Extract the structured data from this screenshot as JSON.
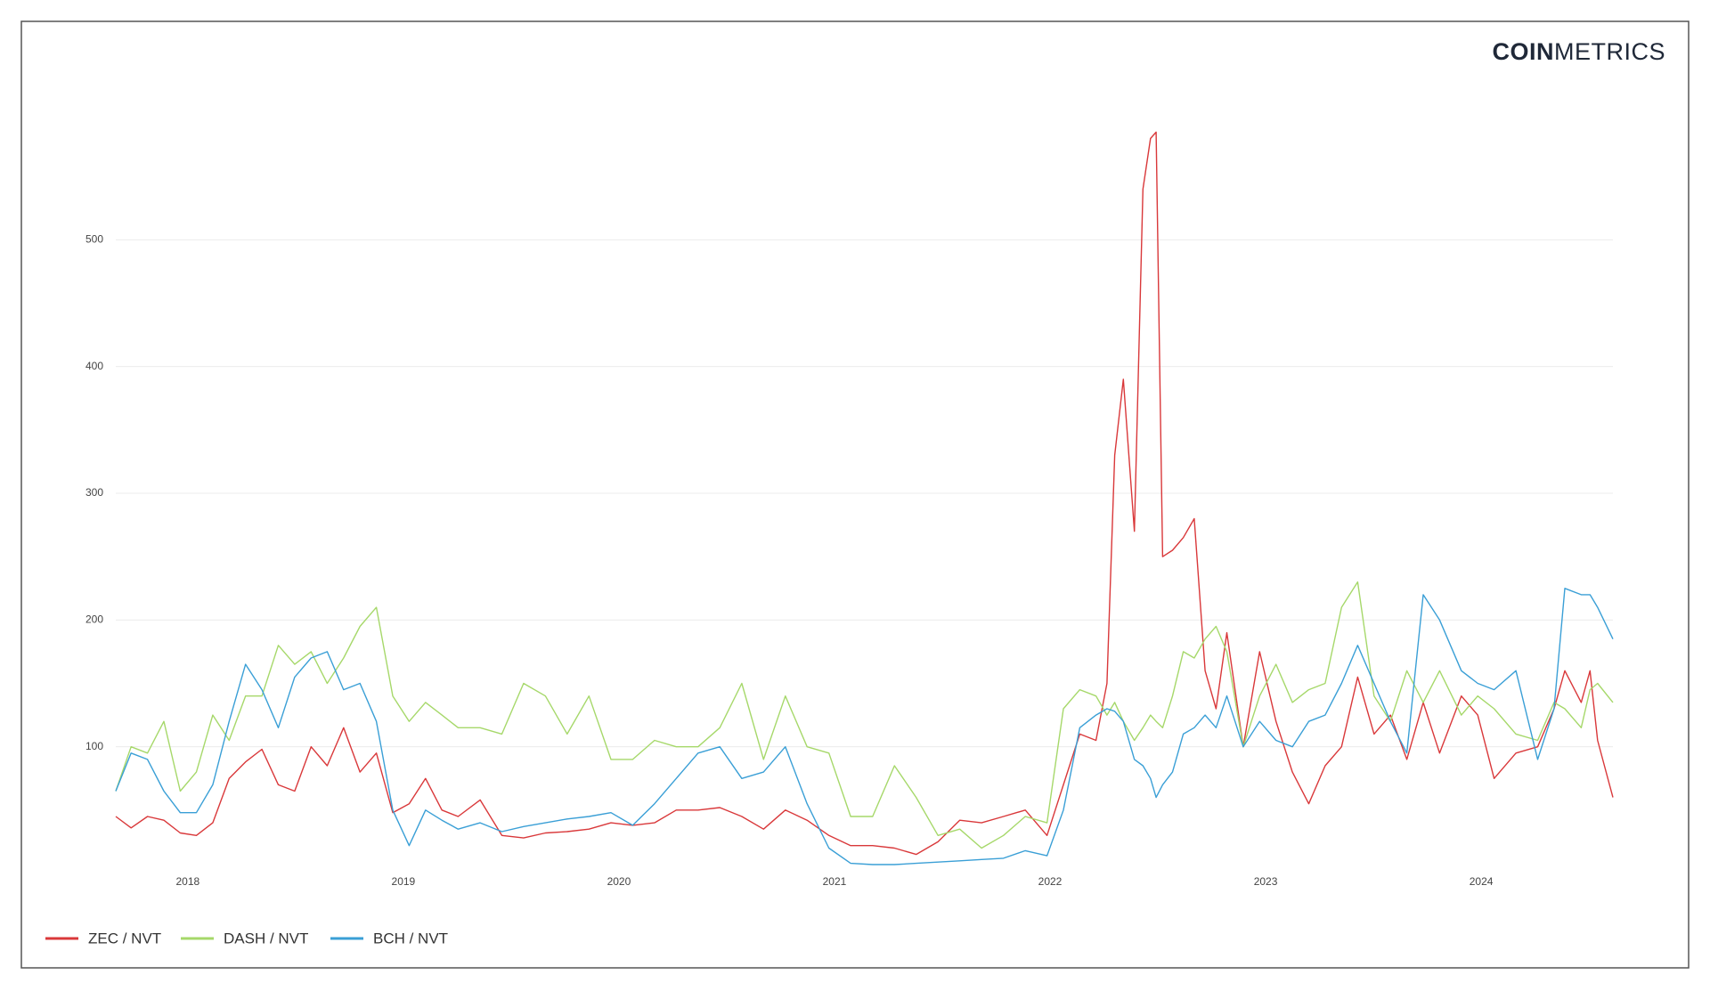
{
  "chart_data": {
    "type": "line",
    "brand": {
      "bold": "COIN",
      "light": "METRICS"
    },
    "x": [
      2017.666,
      2017.737,
      2017.813,
      2017.889,
      2017.965,
      2018.04,
      2018.116,
      2018.192,
      2018.268,
      2018.344,
      2018.42,
      2018.496,
      2018.572,
      2018.647,
      2018.723,
      2018.799,
      2018.875,
      2018.951,
      2019.027,
      2019.103,
      2019.179,
      2019.254,
      2019.356,
      2019.457,
      2019.558,
      2019.659,
      2019.76,
      2019.861,
      2019.963,
      2020.064,
      2020.165,
      2020.266,
      2020.367,
      2020.468,
      2020.57,
      2020.671,
      2020.772,
      2020.873,
      2020.974,
      2021.075,
      2021.177,
      2021.278,
      2021.379,
      2021.48,
      2021.581,
      2021.682,
      2021.784,
      2021.885,
      2021.986,
      2022.062,
      2022.138,
      2022.213,
      2022.264,
      2022.3,
      2022.34,
      2022.391,
      2022.431,
      2022.466,
      2022.492,
      2022.522,
      2022.568,
      2022.618,
      2022.669,
      2022.719,
      2022.77,
      2022.82,
      2022.896,
      2022.972,
      2023.048,
      2023.124,
      2023.2,
      2023.276,
      2023.352,
      2023.427,
      2023.503,
      2023.579,
      2023.655,
      2023.731,
      2023.807,
      2023.908,
      2023.984,
      2024.06,
      2024.161,
      2024.262,
      2024.338,
      2024.388,
      2024.464,
      2024.505,
      2024.54,
      2024.611
    ],
    "series": [
      {
        "name": "ZEC / NVT",
        "color": "#d9383a",
        "values": [
          45,
          36,
          45,
          42,
          32,
          30,
          40,
          75,
          88,
          98,
          70,
          65,
          100,
          85,
          115,
          80,
          95,
          48,
          55,
          75,
          50,
          45,
          58,
          30,
          28,
          32,
          33,
          35,
          40,
          38,
          40,
          50,
          50,
          52,
          45,
          35,
          50,
          42,
          30,
          22,
          22,
          20,
          15,
          25,
          42,
          40,
          45,
          50,
          30,
          70,
          110,
          105,
          150,
          330,
          390,
          270,
          540,
          580,
          585,
          250,
          255,
          265,
          280,
          160,
          130,
          190,
          100,
          175,
          120,
          80,
          55,
          85,
          100,
          155,
          110,
          125,
          90,
          135,
          95,
          140,
          125,
          75,
          95,
          100,
          130,
          160,
          135,
          160,
          105,
          60
        ]
      },
      {
        "name": "DASH / NVT",
        "color": "#a6d86a",
        "values": [
          65,
          100,
          95,
          120,
          65,
          80,
          125,
          105,
          140,
          140,
          180,
          165,
          175,
          150,
          170,
          195,
          210,
          140,
          120,
          135,
          125,
          115,
          115,
          110,
          150,
          140,
          110,
          140,
          90,
          90,
          105,
          100,
          100,
          115,
          150,
          90,
          140,
          100,
          95,
          45,
          45,
          85,
          60,
          30,
          35,
          20,
          30,
          45,
          40,
          130,
          145,
          140,
          125,
          135,
          120,
          105,
          115,
          125,
          120,
          115,
          140,
          175,
          170,
          185,
          195,
          175,
          100,
          140,
          165,
          135,
          145,
          150,
          210,
          230,
          140,
          120,
          160,
          135,
          160,
          125,
          140,
          130,
          110,
          105,
          135,
          130,
          115,
          145,
          150,
          135
        ]
      },
      {
        "name": "BCH / NVT",
        "color": "#3a9fd6",
        "values": [
          65,
          95,
          90,
          65,
          48,
          48,
          70,
          120,
          165,
          145,
          115,
          155,
          170,
          175,
          145,
          150,
          120,
          50,
          22,
          50,
          42,
          35,
          40,
          33,
          37,
          40,
          43,
          45,
          48,
          38,
          55,
          75,
          95,
          100,
          75,
          80,
          100,
          55,
          20,
          8,
          7,
          7,
          8,
          9,
          10,
          11,
          12,
          18,
          14,
          50,
          115,
          125,
          130,
          128,
          120,
          90,
          85,
          75,
          60,
          70,
          80,
          110,
          115,
          125,
          115,
          140,
          100,
          120,
          105,
          100,
          120,
          125,
          150,
          180,
          150,
          120,
          95,
          220,
          200,
          160,
          150,
          145,
          160,
          90,
          130,
          225,
          220,
          220,
          210,
          185
        ]
      }
    ],
    "xlim": [
      2017.666,
      2024.611
    ],
    "xticks": [
      2018,
      2019,
      2020,
      2021,
      2022,
      2023,
      2024
    ],
    "ylim": [
      0,
      600
    ],
    "yticks": [
      100,
      200,
      300,
      400,
      500
    ],
    "grid": true
  }
}
